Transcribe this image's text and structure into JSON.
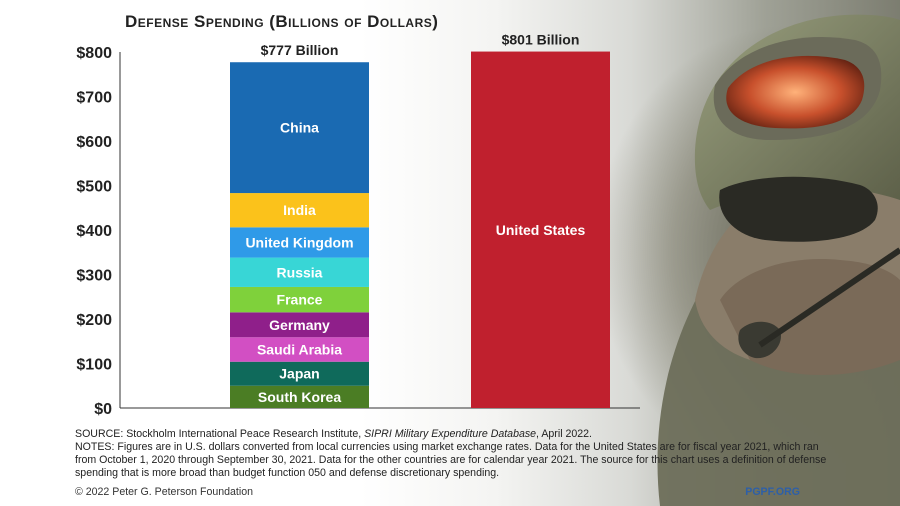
{
  "chart_data": {
    "type": "bar",
    "title": "Defense Spending (Billions of Dollars)",
    "y_axis": {
      "ylim": [
        0,
        800
      ],
      "ticks": [
        "$0",
        "$100",
        "$200",
        "$300",
        "$400",
        "$500",
        "$600",
        "$700",
        "$800"
      ],
      "grid": false
    },
    "stacks": [
      {
        "total_label": "$777 Billion",
        "segments": [
          {
            "name": "South Korea",
            "value": 50,
            "color": "#4b7d24"
          },
          {
            "name": "Japan",
            "value": 54,
            "color": "#0f6a5b"
          },
          {
            "name": "Saudi Arabia",
            "value": 55,
            "color": "#d24fc3"
          },
          {
            "name": "Germany",
            "value": 56,
            "color": "#8f1f8a"
          },
          {
            "name": "France",
            "value": 57,
            "color": "#7fd13b"
          },
          {
            "name": "Russia",
            "value": 66,
            "color": "#38d6d6"
          },
          {
            "name": "United Kingdom",
            "value": 68,
            "color": "#2f9ae8"
          },
          {
            "name": "India",
            "value": 77,
            "color": "#fbc21b"
          },
          {
            "name": "China",
            "value": 294,
            "color": "#1a6ab2"
          }
        ]
      },
      {
        "total_label": "$801 Billion",
        "segments": [
          {
            "name": "United States",
            "value": 801,
            "color": "#c0202e"
          }
        ]
      }
    ]
  },
  "notes": {
    "source_prefix": "SOURCE: Stockholm International Peace Research Institute, ",
    "source_title": "SIPRI Military Expenditure Database",
    "source_suffix": ", April 2022.",
    "notes_text": "NOTES: Figures are in U.S. dollars converted from local currencies using market exchange rates. Data for the United States are for fiscal year 2021, which ran from October 1, 2020 through September 30, 2021. Data for the other countries are for calendar year 2021. The source for this chart uses a definition of defense spending that is more broad than budget function 050 and defense discretionary spending."
  },
  "footer": {
    "copyright": "© 2022 Peter G. Peterson Foundation",
    "logo": "PGPF.ORG"
  }
}
